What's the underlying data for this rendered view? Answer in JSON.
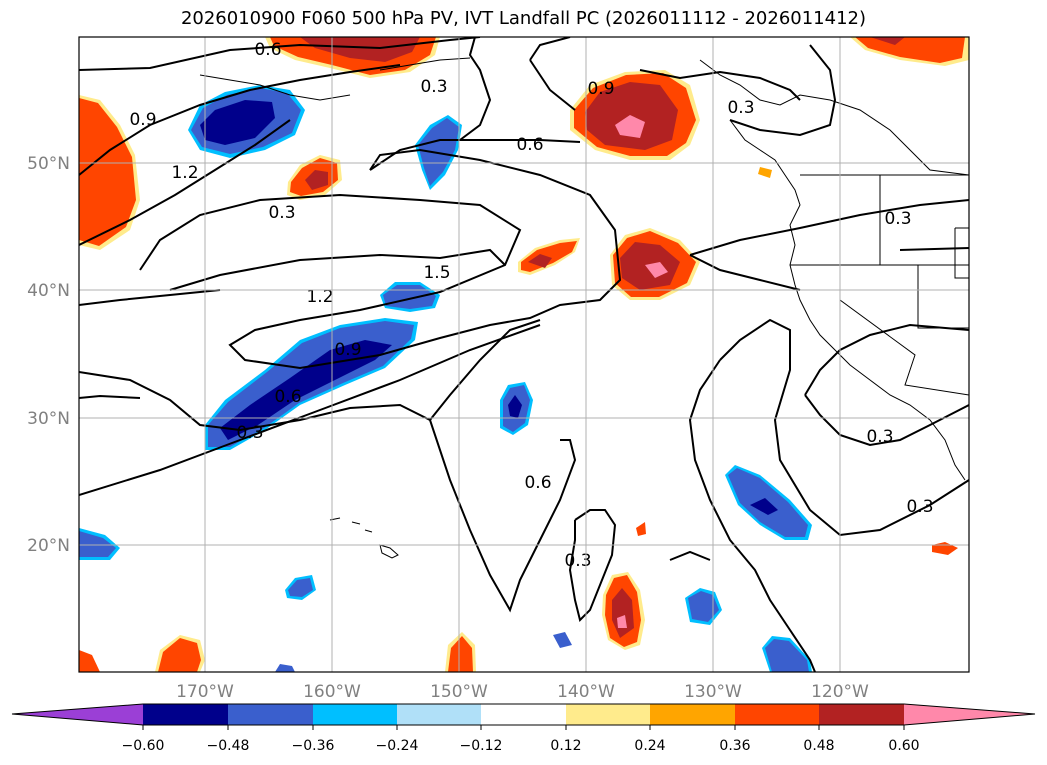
{
  "title": "2026010900 F060 500 hPa PV, IVT Landfall PC (2026011112 - 2026011412)",
  "map": {
    "lon_labels": [
      "170°W",
      "160°W",
      "150°W",
      "140°W",
      "130°W",
      "120°W"
    ],
    "lat_labels": [
      "50°N",
      "40°N",
      "30°N",
      "20°N"
    ]
  },
  "contour_labels": [
    "0.6",
    "0.3",
    "0.9",
    "1.2",
    "0.3",
    "0.6",
    "0.9",
    "0.3",
    "1.5",
    "1.2",
    "0.9",
    "0.6",
    "0.3",
    "0.3",
    "0.6",
    "0.3",
    "0.3",
    "0.3"
  ],
  "colorbar": {
    "colors": [
      "#9b3fd6",
      "#00008b",
      "#3a5fcd",
      "#00bfff",
      "#b0e0f8",
      "#ffffff",
      "#ffeb8c",
      "#ffa500",
      "#ff4500",
      "#b22222",
      "#ff88aa"
    ],
    "tick_labels": [
      "−0.60",
      "−0.48",
      "−0.36",
      "−0.24",
      "−0.12",
      "0.12",
      "0.24",
      "0.36",
      "0.48",
      "0.60"
    ]
  }
}
